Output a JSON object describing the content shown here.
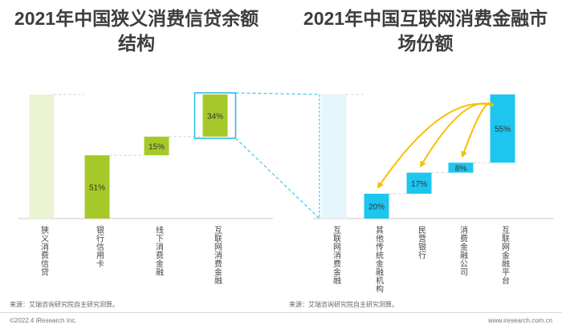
{
  "footer": {
    "copyright": "©2022.4 iResearch Inc.",
    "website": "www.iresearch.com.cn"
  },
  "chart_data": [
    {
      "type": "bar",
      "subtype": "waterfall",
      "title": "2021年中国狭义消费信贷余额结构",
      "categories": [
        "狭义消费信贷",
        "银行信用卡",
        "线下消费金融",
        "互联网消费金融"
      ],
      "values": [
        100,
        51,
        15,
        34
      ],
      "labels": [
        "",
        "51%",
        "15%",
        "34%"
      ],
      "highlight": "互联网消费金融",
      "source": "来源：艾瑞咨询研究院自主研究测算。",
      "colors": {
        "total": "#eaf4d3",
        "bar": "#a6c929",
        "highlight_box": "#1fb8e8"
      }
    },
    {
      "type": "bar",
      "subtype": "waterfall",
      "title": "2021年中国互联网消费金融市场份额",
      "categories": [
        "互联网消费金融",
        "其他传统金融机构",
        "民营银行",
        "消费金融公司",
        "互联网金融平台"
      ],
      "values": [
        100,
        20,
        17,
        8,
        55
      ],
      "labels": [
        "",
        "20%",
        "17%",
        "8%",
        "55%"
      ],
      "source": "来源：艾瑞咨询研究院自主研究测算。",
      "colors": {
        "total": "#e4f5fc",
        "bar": "#1cc6ef",
        "arrow": "#f5c000"
      }
    }
  ]
}
